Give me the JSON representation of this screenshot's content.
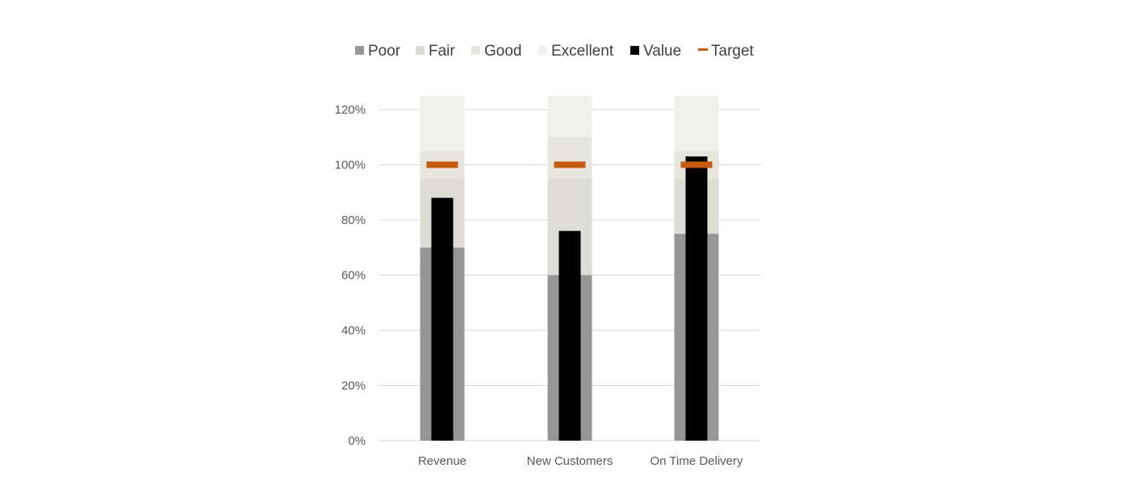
{
  "chart_data": {
    "type": "bar",
    "title": "",
    "xlabel": "",
    "ylabel": "",
    "categories": [
      "Revenue",
      "New Customers",
      "On Time Delivery"
    ],
    "ylim": [
      0,
      1.2
    ],
    "y_ticks": [
      "0%",
      "20%",
      "40%",
      "60%",
      "80%",
      "100%",
      "120%"
    ],
    "y_tick_values": [
      0,
      0.2,
      0.4,
      0.6,
      0.8,
      1.0,
      1.2
    ],
    "grid": true,
    "legend_position": "top",
    "stacked_ranges": [
      {
        "name": "Poor",
        "color": "#969696",
        "values": [
          0.7,
          0.6,
          0.75
        ]
      },
      {
        "name": "Fair",
        "color": "#dddcd6",
        "values": [
          0.25,
          0.35,
          0.2
        ]
      },
      {
        "name": "Good",
        "color": "#e6e6df",
        "values": [
          0.1,
          0.15,
          0.1
        ]
      },
      {
        "name": "Excellent",
        "color": "#f0f0ec",
        "values": [
          0.2,
          0.15,
          0.2
        ]
      }
    ],
    "series": [
      {
        "name": "Value",
        "type": "bar",
        "color": "#000000",
        "values": [
          0.88,
          0.76,
          1.03
        ]
      },
      {
        "name": "Target",
        "type": "marker",
        "color": "#c55a11",
        "values": [
          1.0,
          1.0,
          1.0
        ]
      }
    ],
    "legend": [
      {
        "name": "Poor",
        "color": "#969696",
        "marker": "square"
      },
      {
        "name": "Fair",
        "color": "#dddcd6",
        "marker": "square"
      },
      {
        "name": "Good",
        "color": "#e6e6df",
        "marker": "square"
      },
      {
        "name": "Excellent",
        "color": "#f0f0ec",
        "marker": "square"
      },
      {
        "name": "Value",
        "color": "#000000",
        "marker": "square"
      },
      {
        "name": "Target",
        "color": "#c55a11",
        "marker": "line"
      }
    ],
    "gridline_color": "#d9d9d9"
  }
}
